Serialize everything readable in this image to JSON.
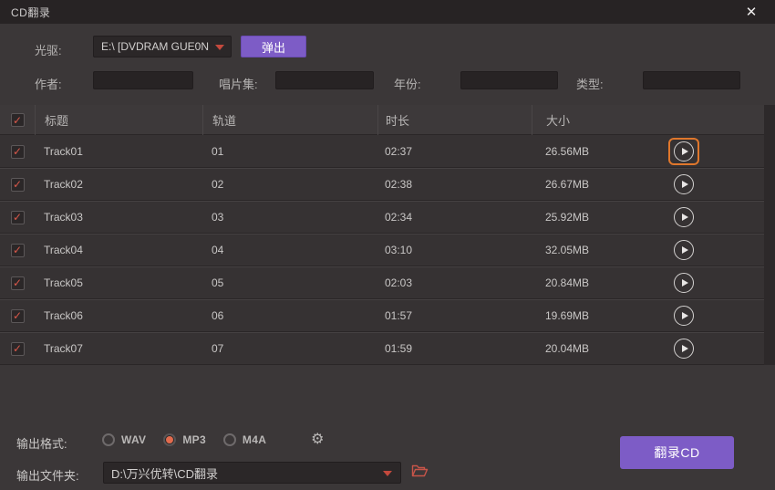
{
  "window": {
    "title": "CD翻录",
    "close_icon": "✕"
  },
  "drive": {
    "label": "光驱:",
    "value": "E:\\ [DVDRAM GUE0N   ]",
    "eject_label": "弹出"
  },
  "meta": {
    "author_label": "作者:",
    "author_value": "",
    "album_label": "唱片集:",
    "album_value": "",
    "year_label": "年份:",
    "year_value": "",
    "genre_label": "类型:",
    "genre_value": ""
  },
  "table": {
    "select_all_checked": true,
    "columns": {
      "title": "标题",
      "track": "轨道",
      "duration": "时长",
      "size": "大小"
    },
    "rows": [
      {
        "checked": true,
        "title": "Track01",
        "track": "01",
        "duration": "02:37",
        "size": "26.56MB",
        "play_highlighted": true
      },
      {
        "checked": true,
        "title": "Track02",
        "track": "02",
        "duration": "02:38",
        "size": "26.67MB",
        "play_highlighted": false
      },
      {
        "checked": true,
        "title": "Track03",
        "track": "03",
        "duration": "02:34",
        "size": "25.92MB",
        "play_highlighted": false
      },
      {
        "checked": true,
        "title": "Track04",
        "track": "04",
        "duration": "03:10",
        "size": "32.05MB",
        "play_highlighted": false
      },
      {
        "checked": true,
        "title": "Track05",
        "track": "05",
        "duration": "02:03",
        "size": "20.84MB",
        "play_highlighted": false
      },
      {
        "checked": true,
        "title": "Track06",
        "track": "06",
        "duration": "01:57",
        "size": "19.69MB",
        "play_highlighted": false
      },
      {
        "checked": true,
        "title": "Track07",
        "track": "07",
        "duration": "01:59",
        "size": "20.04MB",
        "play_highlighted": false
      }
    ]
  },
  "output": {
    "format_label": "输出格式:",
    "formats": [
      {
        "label": "WAV",
        "selected": false
      },
      {
        "label": "MP3",
        "selected": true
      },
      {
        "label": "M4A",
        "selected": false
      }
    ],
    "folder_label": "输出文件夹:",
    "folder_value": "D:\\万兴优转\\CD翻录",
    "rip_label": "翻录CD"
  },
  "icons": {
    "check": "✓",
    "gear": "⚙",
    "close": "✕"
  },
  "colors": {
    "accent_purple": "#7d5cc6",
    "accent_red": "#d8584a",
    "highlight_orange": "#e0772c",
    "background": "#3b3738"
  }
}
